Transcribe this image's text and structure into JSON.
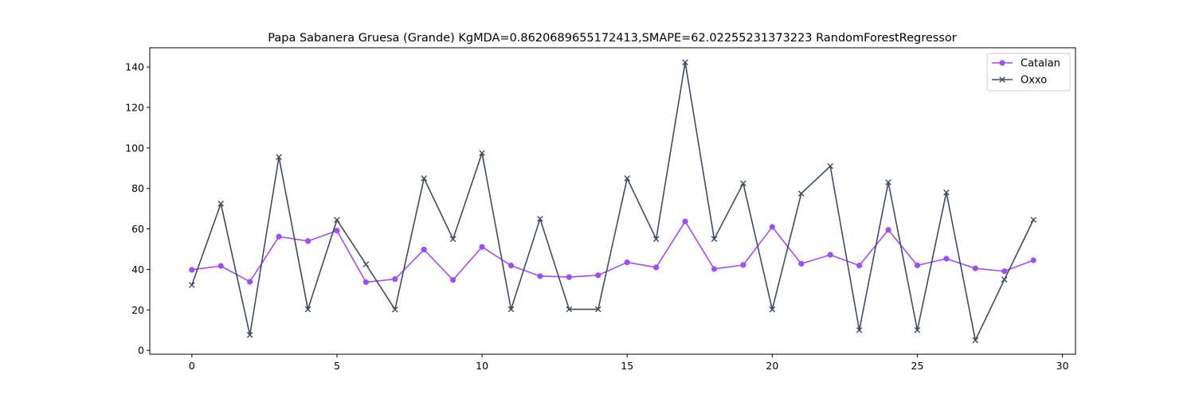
{
  "chart_data": {
    "type": "line",
    "title": "Papa Sabanera Gruesa (Grande) KgMDA=0.8620689655172413,SMAPE=62.02255231373223 RandomForestRegressor",
    "xlabel": "",
    "ylabel": "",
    "xlim": [
      -1.45,
      30.45
    ],
    "ylim": [
      -1.9,
      149.5
    ],
    "xticks": [
      0,
      5,
      10,
      15,
      20,
      25,
      30
    ],
    "yticks": [
      0,
      20,
      40,
      60,
      80,
      100,
      120,
      140
    ],
    "grid": false,
    "legend_position": "top-right",
    "x": [
      0,
      1,
      2,
      3,
      4,
      5,
      6,
      7,
      8,
      9,
      10,
      11,
      12,
      13,
      14,
      15,
      16,
      17,
      18,
      19,
      20,
      21,
      22,
      23,
      24,
      25,
      26,
      27,
      28,
      29
    ],
    "series": [
      {
        "name": "Catalan",
        "color": "#a04cf7",
        "marker": "circle",
        "values": [
          39.8,
          41.7,
          33.9,
          56.2,
          54,
          59.1,
          33.7,
          35.2,
          49.8,
          34.8,
          51.1,
          41.9,
          36.7,
          36.2,
          37.1,
          43.5,
          41,
          63.7,
          40.2,
          42.2,
          61,
          42.8,
          47.2,
          41.9,
          59.5,
          42,
          45.3,
          40.5,
          39.1,
          44.5
        ]
      },
      {
        "name": "Oxxo",
        "color": "#3f4b63",
        "marker": "x",
        "values": [
          32.3,
          72.5,
          7.6,
          95.5,
          20.3,
          64.5,
          42.5,
          20.2,
          85,
          55,
          97.5,
          20.3,
          65,
          20.3,
          20.3,
          85,
          55,
          142.3,
          55,
          82.5,
          20.2,
          77.5,
          91,
          10,
          83,
          10,
          78,
          5,
          35,
          64.5
        ]
      }
    ]
  }
}
